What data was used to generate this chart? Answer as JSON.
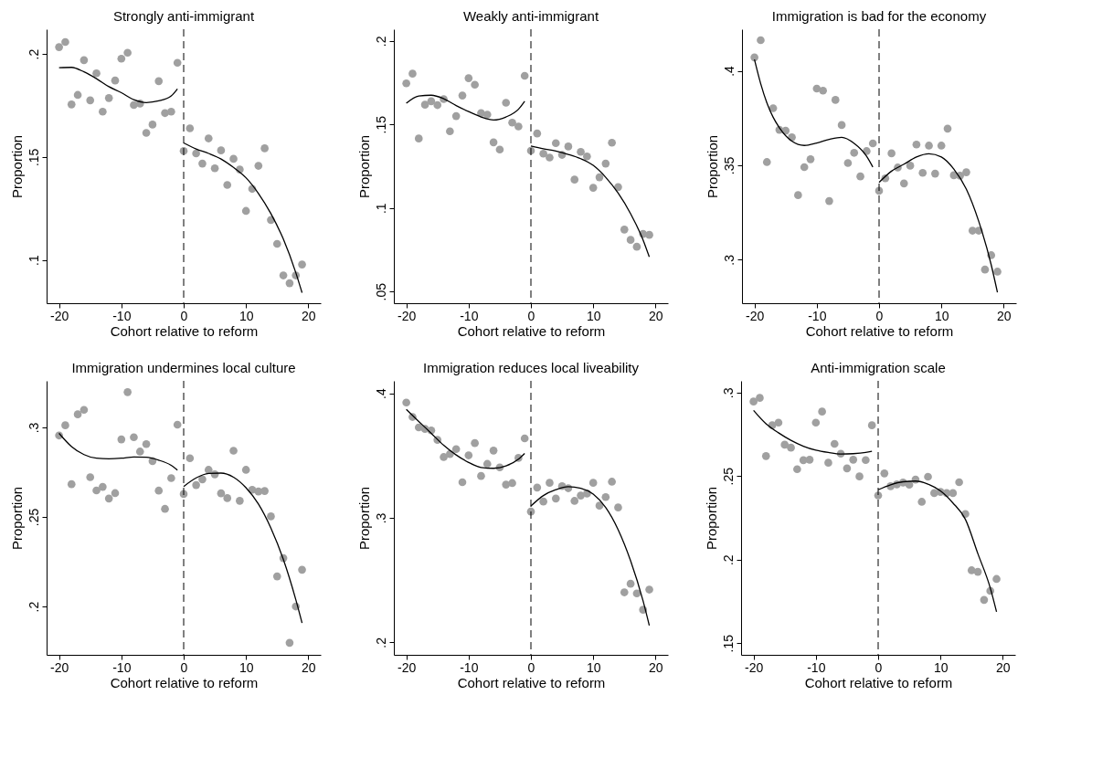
{
  "chart_data": [
    {
      "type": "scatter",
      "title": "Strongly anti-immigrant",
      "xlabel": "Cohort relative to reform",
      "ylabel": "Proportion",
      "xlim": [
        -22,
        22
      ],
      "xticks": [
        -20,
        -10,
        0,
        10,
        20
      ],
      "ylim": [
        0.079,
        0.212
      ],
      "yticks": [
        {
          "value": 0.1,
          "label": ".1"
        },
        {
          "value": 0.15,
          "label": ".15"
        },
        {
          "value": 0.2,
          "label": ".2"
        }
      ],
      "grid": false,
      "ref_lines": [
        {
          "axis": "x",
          "value": 0,
          "color": "#000000",
          "line_style": "dashed"
        }
      ],
      "series": [
        {
          "color": "#a0a0a0",
          "marker": "circle",
          "x": [
            -20,
            -19,
            -18,
            -17,
            -16,
            -15,
            -14,
            -13,
            -12,
            -11,
            -10,
            -9,
            -8,
            -7,
            -6,
            -5,
            -4,
            -3,
            -2,
            -1,
            0,
            1,
            2,
            3,
            4,
            5,
            6,
            7,
            8,
            9,
            10,
            11,
            12,
            13,
            14,
            15,
            16,
            17,
            18,
            19
          ],
          "values": [
            0.2033,
            0.2058,
            0.1755,
            0.1801,
            0.197,
            0.1775,
            0.1906,
            0.172,
            0.1786,
            0.1871,
            0.1977,
            0.2006,
            0.1752,
            0.1759,
            0.1617,
            0.1657,
            0.1868,
            0.1713,
            0.172,
            0.1957,
            0.1529,
            0.1639,
            0.1517,
            0.1468,
            0.159,
            0.1445,
            0.1532,
            0.1364,
            0.1491,
            0.1439,
            0.1238,
            0.1345,
            0.1457,
            0.1542,
            0.1194,
            0.1078,
            0.0925,
            0.0887,
            0.0925,
            0.0978
          ]
        },
        {
          "type": "line",
          "color": "#000000",
          "line_style": "solid",
          "x": [
            -20,
            -18,
            -16,
            -14,
            -12,
            -10,
            -8,
            -6,
            -4,
            -2,
            -1
          ],
          "values": [
            0.1933,
            0.1935,
            0.1913,
            0.188,
            0.1841,
            0.1812,
            0.1778,
            0.1764,
            0.1772,
            0.1796,
            0.183
          ]
        },
        {
          "type": "line",
          "color": "#000000",
          "line_style": "solid",
          "x": [
            0,
            2,
            4,
            6,
            8,
            10,
            12,
            14,
            16,
            18,
            19
          ],
          "values": [
            0.1568,
            0.1539,
            0.1517,
            0.149,
            0.1449,
            0.1399,
            0.1323,
            0.1225,
            0.1101,
            0.0938,
            0.0841
          ]
        }
      ]
    },
    {
      "type": "scatter",
      "title": "Weakly anti-immigrant",
      "xlabel": "Cohort relative to reform",
      "ylabel": "Proportion",
      "xlim": [
        -22,
        22
      ],
      "xticks": [
        -20,
        -10,
        0,
        10,
        20
      ],
      "ylim": [
        0.043,
        0.207
      ],
      "yticks": [
        {
          "value": 0.05,
          "label": ".05"
        },
        {
          "value": 0.1,
          "label": ".1"
        },
        {
          "value": 0.15,
          "label": ".15"
        },
        {
          "value": 0.2,
          "label": ".2"
        }
      ],
      "grid": false,
      "ref_lines": [
        {
          "axis": "x",
          "value": 0,
          "color": "#000000",
          "line_style": "dashed"
        }
      ],
      "series": [
        {
          "color": "#a0a0a0",
          "marker": "circle",
          "x": [
            -20,
            -19,
            -18,
            -17,
            -16,
            -15,
            -14,
            -13,
            -12,
            -11,
            -10,
            -9,
            -8,
            -7,
            -6,
            -5,
            -4,
            -3,
            -2,
            -1,
            0,
            1,
            2,
            3,
            4,
            5,
            6,
            7,
            8,
            9,
            10,
            11,
            12,
            13,
            14,
            15,
            16,
            17,
            18,
            19
          ],
          "values": [
            0.1746,
            0.1804,
            0.1416,
            0.1618,
            0.1639,
            0.1616,
            0.1652,
            0.1459,
            0.155,
            0.1673,
            0.1777,
            0.1738,
            0.1568,
            0.1559,
            0.1393,
            0.135,
            0.163,
            0.1511,
            0.1488,
            0.1791,
            0.1343,
            0.1446,
            0.1325,
            0.1302,
            0.1388,
            0.1318,
            0.1368,
            0.117,
            0.1336,
            0.1309,
            0.1121,
            0.1184,
            0.1266,
            0.1391,
            0.1125,
            0.0871,
            0.0809,
            0.0768,
            0.0845,
            0.0839
          ]
        },
        {
          "type": "line",
          "color": "#000000",
          "line_style": "solid",
          "x": [
            -20,
            -18,
            -16,
            -14,
            -12,
            -10,
            -8,
            -6,
            -4,
            -2,
            -1
          ],
          "values": [
            0.1627,
            0.167,
            0.1675,
            0.1654,
            0.1613,
            0.1577,
            0.1545,
            0.1527,
            0.1545,
            0.1591,
            0.1639
          ]
        },
        {
          "type": "line",
          "color": "#000000",
          "line_style": "solid",
          "x": [
            0,
            2,
            4,
            6,
            8,
            10,
            12,
            14,
            16,
            18,
            19
          ],
          "values": [
            0.1371,
            0.1355,
            0.1341,
            0.1321,
            0.1295,
            0.1255,
            0.1184,
            0.1089,
            0.0966,
            0.0809,
            0.0707
          ]
        }
      ]
    },
    {
      "type": "scatter",
      "title": "Immigration is bad for the economy",
      "xlabel": "Cohort relative to reform",
      "ylabel": "Proportion",
      "xlim": [
        -22,
        22
      ],
      "xticks": [
        -20,
        -10,
        0,
        10,
        20
      ],
      "ylim": [
        0.277,
        0.422
      ],
      "yticks": [
        {
          "value": 0.3,
          "label": ".3"
        },
        {
          "value": 0.35,
          "label": ".35"
        },
        {
          "value": 0.4,
          "label": ".4"
        }
      ],
      "grid": false,
      "ref_lines": [
        {
          "axis": "x",
          "value": 0,
          "color": "#000000",
          "line_style": "dashed"
        }
      ],
      "series": [
        {
          "color": "#a0a0a0",
          "marker": "circle",
          "x": [
            -20,
            -19,
            -18,
            -17,
            -16,
            -15,
            -14,
            -13,
            -12,
            -11,
            -10,
            -9,
            -8,
            -7,
            -6,
            -5,
            -4,
            -3,
            -2,
            -1,
            0,
            1,
            2,
            3,
            4,
            5,
            6,
            7,
            8,
            9,
            10,
            11,
            12,
            13,
            14,
            15,
            16,
            17,
            18,
            19
          ],
          "values": [
            0.4071,
            0.4162,
            0.3517,
            0.3802,
            0.3688,
            0.3683,
            0.3648,
            0.3342,
            0.349,
            0.3532,
            0.3906,
            0.3895,
            0.3311,
            0.3846,
            0.3713,
            0.3512,
            0.3566,
            0.3441,
            0.3575,
            0.3616,
            0.3365,
            0.3431,
            0.3563,
            0.3488,
            0.3404,
            0.3498,
            0.361,
            0.346,
            0.3604,
            0.3456,
            0.3604,
            0.3694,
            0.3447,
            0.3445,
            0.3463,
            0.3154,
            0.3154,
            0.2948,
            0.3024,
            0.2937
          ]
        },
        {
          "type": "line",
          "color": "#000000",
          "line_style": "solid",
          "x": [
            -20,
            -19,
            -18,
            -17,
            -16,
            -14,
            -12,
            -10,
            -8,
            -6,
            -4,
            -2,
            -1
          ],
          "values": [
            0.406,
            0.3932,
            0.383,
            0.3754,
            0.3699,
            0.3628,
            0.3605,
            0.3618,
            0.3637,
            0.3648,
            0.3616,
            0.3548,
            0.3491
          ]
        },
        {
          "type": "line",
          "color": "#000000",
          "line_style": "solid",
          "x": [
            0,
            2,
            4,
            6,
            8,
            10,
            12,
            14,
            16,
            18,
            19
          ],
          "values": [
            0.3409,
            0.3469,
            0.3506,
            0.3544,
            0.3561,
            0.3544,
            0.348,
            0.3374,
            0.3203,
            0.2973,
            0.2827
          ]
        }
      ]
    },
    {
      "type": "scatter",
      "title": "Immigration undermines local culture",
      "xlabel": "Cohort relative to reform",
      "ylabel": "Proportion",
      "xlim": [
        -22,
        22
      ],
      "xticks": [
        -20,
        -10,
        0,
        10,
        20
      ],
      "ylim": [
        0.173,
        0.326
      ],
      "yticks": [
        {
          "value": 0.2,
          "label": ".2"
        },
        {
          "value": 0.25,
          "label": ".25"
        },
        {
          "value": 0.3,
          "label": ".3"
        }
      ],
      "grid": false,
      "ref_lines": [
        {
          "axis": "x",
          "value": 0,
          "color": "#000000",
          "line_style": "dashed"
        }
      ],
      "series": [
        {
          "color": "#a0a0a0",
          "marker": "circle",
          "x": [
            -20,
            -19,
            -18,
            -17,
            -16,
            -15,
            -14,
            -13,
            -12,
            -11,
            -10,
            -9,
            -8,
            -7,
            -6,
            -5,
            -4,
            -3,
            -2,
            -1,
            0,
            1,
            2,
            3,
            4,
            5,
            6,
            7,
            8,
            9,
            10,
            11,
            12,
            13,
            14,
            15,
            16,
            17,
            18,
            19
          ],
          "values": [
            0.2955,
            0.3012,
            0.2683,
            0.3073,
            0.3098,
            0.2722,
            0.2648,
            0.2668,
            0.2603,
            0.2633,
            0.2933,
            0.3197,
            0.2945,
            0.2865,
            0.2907,
            0.2812,
            0.2647,
            0.2545,
            0.2717,
            0.3015,
            0.2628,
            0.2828,
            0.2678,
            0.271,
            0.2763,
            0.2738,
            0.2632,
            0.2605,
            0.287,
            0.259,
            0.2763,
            0.2652,
            0.2642,
            0.2645,
            0.2503,
            0.2168,
            0.227,
            0.1797,
            0.2,
            0.2205
          ]
        },
        {
          "type": "line",
          "color": "#000000",
          "line_style": "solid",
          "x": [
            -20,
            -18,
            -16,
            -14,
            -12,
            -10,
            -8,
            -6,
            -4,
            -2,
            -1
          ],
          "values": [
            0.2967,
            0.2893,
            0.2848,
            0.2828,
            0.2825,
            0.2828,
            0.2835,
            0.2833,
            0.2817,
            0.2788,
            0.2762
          ]
        },
        {
          "type": "line",
          "color": "#000000",
          "line_style": "solid",
          "x": [
            0,
            2,
            4,
            6,
            8,
            10,
            12,
            14,
            16,
            18,
            19
          ],
          "values": [
            0.267,
            0.2718,
            0.2743,
            0.2745,
            0.2722,
            0.2663,
            0.2572,
            0.2438,
            0.2263,
            0.2038,
            0.1908
          ]
        }
      ]
    },
    {
      "type": "scatter",
      "title": "Immigration reduces local liveability",
      "xlabel": "Cohort relative to reform",
      "ylabel": "Proportion",
      "xlim": [
        -22,
        22
      ],
      "xticks": [
        -20,
        -10,
        0,
        10,
        20
      ],
      "ylim": [
        0.19,
        0.41
      ],
      "yticks": [
        {
          "value": 0.2,
          "label": ".2"
        },
        {
          "value": 0.3,
          "label": ".3"
        },
        {
          "value": 0.4,
          "label": ".4"
        }
      ],
      "grid": false,
      "ref_lines": [
        {
          "axis": "x",
          "value": 0,
          "color": "#000000",
          "line_style": "dashed"
        }
      ],
      "series": [
        {
          "color": "#a0a0a0",
          "marker": "circle",
          "x": [
            -20,
            -19,
            -18,
            -17,
            -16,
            -15,
            -14,
            -13,
            -12,
            -11,
            -10,
            -9,
            -8,
            -7,
            -6,
            -5,
            -4,
            -3,
            -2,
            -1,
            0,
            1,
            2,
            3,
            4,
            5,
            6,
            7,
            8,
            9,
            10,
            11,
            12,
            13,
            14,
            15,
            16,
            17,
            18,
            19
          ],
          "values": [
            0.3926,
            0.381,
            0.3726,
            0.3714,
            0.3702,
            0.3626,
            0.3488,
            0.3512,
            0.3552,
            0.3286,
            0.3502,
            0.36,
            0.3336,
            0.3433,
            0.354,
            0.3405,
            0.3267,
            0.3279,
            0.3481,
            0.3638,
            0.305,
            0.3243,
            0.3131,
            0.3281,
            0.3155,
            0.3255,
            0.3238,
            0.3136,
            0.3179,
            0.3195,
            0.3281,
            0.3098,
            0.3167,
            0.329,
            0.3083,
            0.2402,
            0.2471,
            0.2393,
            0.2262,
            0.2424
          ]
        },
        {
          "type": "line",
          "color": "#000000",
          "line_style": "solid",
          "x": [
            -20,
            -18,
            -16,
            -14,
            -12,
            -10,
            -8,
            -6,
            -4,
            -2,
            -1
          ],
          "values": [
            0.3871,
            0.3774,
            0.3679,
            0.3583,
            0.3505,
            0.3445,
            0.3405,
            0.3398,
            0.3417,
            0.3471,
            0.3517
          ]
        },
        {
          "type": "line",
          "color": "#000000",
          "line_style": "solid",
          "x": [
            0,
            2,
            4,
            6,
            8,
            10,
            12,
            14,
            16,
            18,
            19
          ],
          "values": [
            0.3095,
            0.3179,
            0.3226,
            0.325,
            0.3238,
            0.319,
            0.3083,
            0.2905,
            0.2655,
            0.2333,
            0.2136
          ]
        }
      ]
    },
    {
      "type": "scatter",
      "title": "Anti-immigration scale",
      "xlabel": "Cohort relative to reform",
      "ylabel": "Proportion",
      "xlim": [
        -22,
        22
      ],
      "xticks": [
        -20,
        -10,
        0,
        10,
        20
      ],
      "ylim": [
        0.143,
        0.307
      ],
      "yticks": [
        {
          "value": 0.15,
          "label": ".15"
        },
        {
          "value": 0.2,
          "label": ".2"
        },
        {
          "value": 0.25,
          "label": ".25"
        },
        {
          "value": 0.3,
          "label": ".3"
        }
      ],
      "grid": false,
      "ref_lines": [
        {
          "axis": "x",
          "value": 0,
          "color": "#000000",
          "line_style": "dashed"
        }
      ],
      "series": [
        {
          "color": "#a0a0a0",
          "marker": "circle",
          "x": [
            -20,
            -19,
            -18,
            -17,
            -16,
            -15,
            -14,
            -13,
            -12,
            -11,
            -10,
            -9,
            -8,
            -7,
            -6,
            -5,
            -4,
            -3,
            -2,
            -1,
            0,
            1,
            2,
            3,
            4,
            5,
            6,
            7,
            8,
            9,
            10,
            11,
            12,
            13,
            14,
            15,
            16,
            17,
            18,
            19
          ],
          "values": [
            0.2946,
            0.2968,
            0.262,
            0.2804,
            0.282,
            0.2688,
            0.267,
            0.2541,
            0.2595,
            0.2598,
            0.282,
            0.2886,
            0.258,
            0.2693,
            0.2634,
            0.2546,
            0.2598,
            0.2498,
            0.2596,
            0.2804,
            0.2384,
            0.2516,
            0.2439,
            0.245,
            0.2461,
            0.2448,
            0.2479,
            0.2346,
            0.2496,
            0.2398,
            0.2405,
            0.2398,
            0.2398,
            0.2463,
            0.2273,
            0.1936,
            0.1927,
            0.1759,
            0.1813,
            0.1884
          ]
        },
        {
          "type": "line",
          "color": "#000000",
          "line_style": "solid",
          "x": [
            -20,
            -18,
            -16,
            -14,
            -12,
            -10,
            -8,
            -6,
            -4,
            -2,
            -1
          ],
          "values": [
            0.2893,
            0.2813,
            0.2759,
            0.2714,
            0.2679,
            0.2655,
            0.2641,
            0.2632,
            0.2634,
            0.2641,
            0.2648
          ]
        },
        {
          "type": "line",
          "color": "#000000",
          "line_style": "solid",
          "x": [
            0,
            2,
            4,
            6,
            8,
            10,
            12,
            14,
            16,
            18,
            19
          ],
          "values": [
            0.2418,
            0.2448,
            0.2466,
            0.247,
            0.2452,
            0.2411,
            0.2339,
            0.2241,
            0.2036,
            0.183,
            0.1688
          ]
        }
      ]
    }
  ]
}
